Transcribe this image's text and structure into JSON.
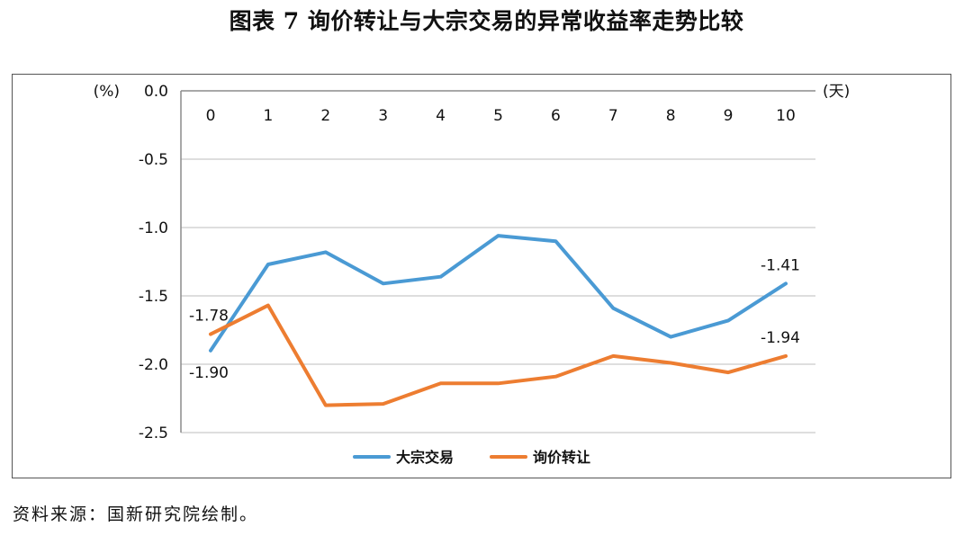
{
  "title": "图表 7  询价转让与大宗交易的异常收益率走势比较",
  "source": "资料来源：国新研究院绘制。",
  "chart_data": {
    "type": "line",
    "y_unit_label": "(%)",
    "x_unit_label": "(天)",
    "x": [
      0,
      1,
      2,
      3,
      4,
      5,
      6,
      7,
      8,
      9,
      10
    ],
    "x_tick_labels": [
      "0",
      "1",
      "2",
      "3",
      "4",
      "5",
      "6",
      "7",
      "8",
      "9",
      "10"
    ],
    "y_ticks": [
      0.0,
      -0.5,
      -1.0,
      -1.5,
      -2.0,
      -2.5
    ],
    "y_tick_labels": [
      "0.0",
      "-0.5",
      "-1.0",
      "-1.5",
      "-2.0",
      "-2.5"
    ],
    "ylim": [
      -2.5,
      0.0
    ],
    "grid": true,
    "legend_position": "bottom-center",
    "series": [
      {
        "name": "大宗交易",
        "color": "#4a9ad4",
        "values": [
          -1.9,
          -1.27,
          -1.18,
          -1.41,
          -1.36,
          -1.06,
          -1.1,
          -1.59,
          -1.8,
          -1.68,
          -1.41
        ]
      },
      {
        "name": "询价转让",
        "color": "#ed7d31",
        "values": [
          -1.78,
          -1.57,
          -2.3,
          -2.29,
          -2.14,
          -2.14,
          -2.09,
          -1.94,
          -1.99,
          -2.06,
          -1.94
        ]
      }
    ],
    "annotations": [
      {
        "text": "-1.78",
        "series": 1,
        "index": 0,
        "position": "above"
      },
      {
        "text": "-1.90",
        "series": 0,
        "index": 0,
        "position": "below"
      },
      {
        "text": "-1.41",
        "series": 0,
        "index": 10,
        "position": "above"
      },
      {
        "text": "-1.94",
        "series": 1,
        "index": 10,
        "position": "above"
      }
    ]
  }
}
